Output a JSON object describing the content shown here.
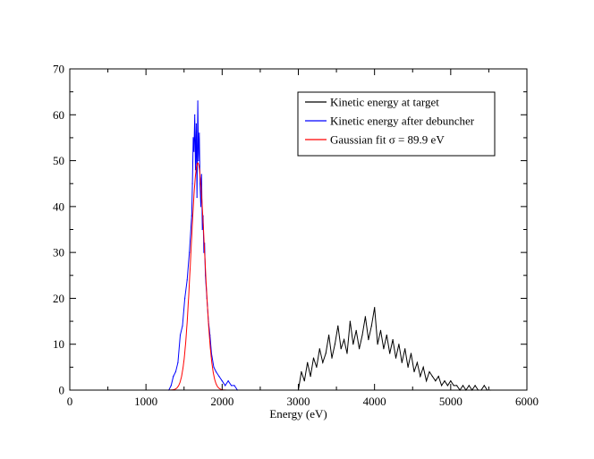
{
  "chart_data": {
    "type": "line",
    "title": "",
    "xlabel": "Energy (eV)",
    "ylabel": "",
    "xlim": [
      0,
      6000
    ],
    "ylim": [
      0,
      70
    ],
    "x_ticks": [
      0,
      1000,
      2000,
      3000,
      4000,
      5000,
      6000
    ],
    "y_ticks": [
      0,
      10,
      20,
      30,
      40,
      50,
      60,
      70
    ],
    "x_minor_step": 500,
    "y_minor_step": 5,
    "grid": false,
    "legend_position": "top-right",
    "series": [
      {
        "name": "Kinetic energy at target",
        "color": "#000000",
        "x": [
          3000,
          3040,
          3080,
          3120,
          3160,
          3200,
          3240,
          3280,
          3320,
          3360,
          3400,
          3440,
          3480,
          3520,
          3560,
          3600,
          3640,
          3680,
          3720,
          3760,
          3800,
          3840,
          3880,
          3920,
          3960,
          4000,
          4040,
          4080,
          4120,
          4160,
          4200,
          4240,
          4280,
          4320,
          4360,
          4400,
          4440,
          4480,
          4520,
          4560,
          4600,
          4640,
          4680,
          4720,
          4760,
          4800,
          4840,
          4880,
          4920,
          4960,
          5000,
          5040,
          5080,
          5120,
          5160,
          5200,
          5240,
          5280,
          5320,
          5360,
          5400,
          5440,
          5480,
          5520
        ],
        "y": [
          0,
          4,
          2,
          6,
          3,
          7,
          5,
          9,
          6,
          8,
          12,
          7,
          10,
          14,
          9,
          11,
          8,
          15,
          10,
          13,
          9,
          12,
          16,
          11,
          14,
          18,
          10,
          13,
          9,
          12,
          8,
          11,
          7,
          10,
          6,
          9,
          5,
          8,
          4,
          6,
          3,
          5,
          2,
          4,
          3,
          2,
          3,
          1,
          2,
          1,
          2,
          1,
          1,
          0,
          1,
          0,
          1,
          0,
          1,
          0,
          0,
          1,
          0,
          0
        ]
      },
      {
        "name": "Kinetic energy after debuncher",
        "color": "#0000ff",
        "x": [
          1300,
          1330,
          1360,
          1390,
          1420,
          1450,
          1480,
          1510,
          1540,
          1570,
          1600,
          1610,
          1620,
          1630,
          1640,
          1650,
          1660,
          1670,
          1680,
          1690,
          1700,
          1710,
          1720,
          1730,
          1740,
          1750,
          1760,
          1770,
          1780,
          1800,
          1820,
          1840,
          1860,
          1890,
          1920,
          1960,
          2000,
          2040,
          2080,
          2120,
          2160,
          2200
        ],
        "y": [
          0,
          1,
          3,
          4,
          6,
          12,
          14,
          20,
          24,
          30,
          38,
          45,
          55,
          52,
          60,
          48,
          58,
          42,
          63,
          50,
          56,
          45,
          40,
          47,
          35,
          38,
          30,
          32,
          25,
          20,
          15,
          12,
          8,
          5,
          4,
          3,
          2,
          1,
          2,
          1,
          1,
          0
        ]
      },
      {
        "name": "Gaussian fit σ = 89.9 eV",
        "color": "#ff0000",
        "fit": {
          "mean": 1680,
          "sigma": 89.9,
          "amplitude": 49.5,
          "x_range": [
            1300,
            2200
          ]
        }
      }
    ]
  }
}
